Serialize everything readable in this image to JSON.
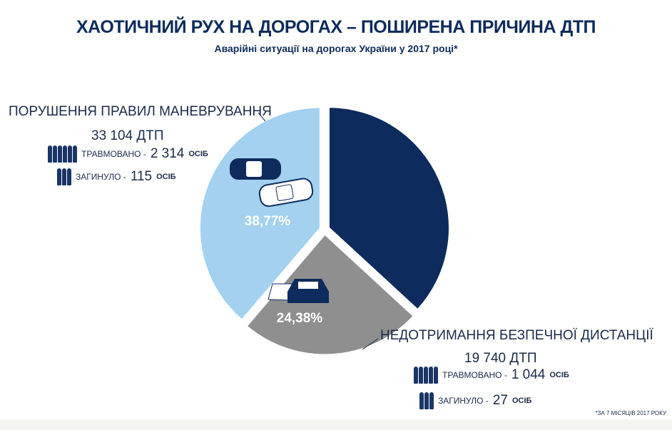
{
  "title": "ХАОТИЧНИЙ РУХ НА ДОРОГАХ – ПОШИРЕНА ПРИЧИНА ДТП",
  "subtitle": "Аварійні ситуації на дорогах України у 2017 році*",
  "footnote": "*ЗА 7 МІСЯЦІВ 2017 РОКУ",
  "colors": {
    "navy": "#0d2b5c",
    "light_blue": "#a3d1ef",
    "gray": "#8f8f8f"
  },
  "blocks": [
    {
      "category": "ПОРУШЕННЯ ПРАВИЛ МАНЕВРУВАННЯ",
      "count": "33 104  ДТП",
      "injured_label": "ТРАВМОВАНО -",
      "injured": "2 314",
      "killed_label": "ЗАГИНУЛО -",
      "killed": "115",
      "unit": "ОСІБ"
    },
    {
      "category": "НЕДОТРИМАННЯ БЕЗПЕЧНОЇ ДИСТАНЦІЇ",
      "count": "19 740 ДТП",
      "injured_label": "ТРАВМОВАНО -",
      "injured": "1 044",
      "killed_label": "ЗАГИНУЛО -",
      "killed": "27",
      "unit": "ОСІБ"
    }
  ],
  "chart_data": {
    "type": "pie",
    "title": "Аварійні ситуації на дорогах України у 2017 році*",
    "slices": [
      {
        "name": "ПОРУШЕННЯ ПРАВИЛ МАНЕВРУВАННЯ",
        "value": 38.77,
        "label": "38,77%",
        "color": "#a3d1ef"
      },
      {
        "name": "НЕДОТРИМАННЯ БЕЗПЕЧНОЇ ДИСТАНЦІЇ",
        "value": 24.38,
        "label": "24,38%",
        "color": "#8f8f8f"
      },
      {
        "name": "other",
        "value": 36.85,
        "label": "",
        "color": "#0d2b5c"
      }
    ]
  }
}
